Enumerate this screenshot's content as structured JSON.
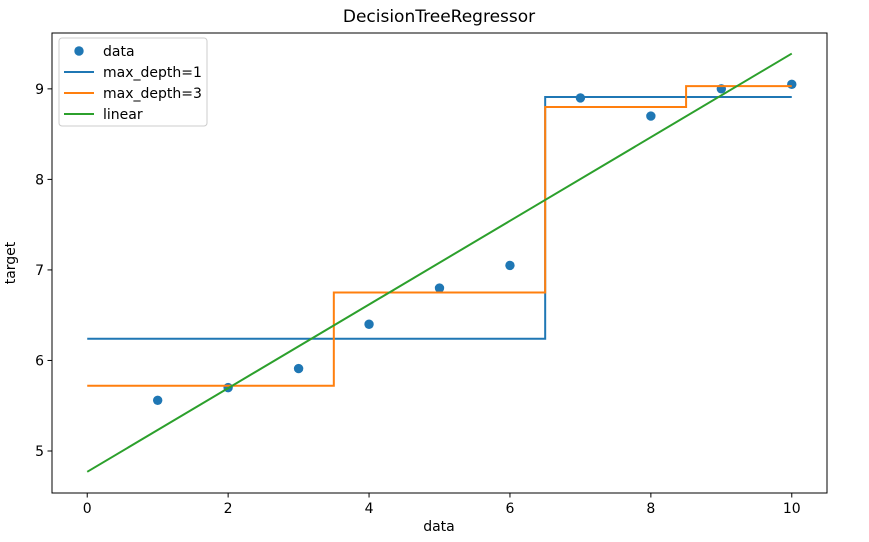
{
  "figure": {
    "title": "DecisionTreeRegressor",
    "xlabel": "data",
    "ylabel": "target",
    "background": "#ffffff"
  },
  "chart_data": {
    "type": "scatter",
    "title": "DecisionTreeRegressor",
    "xlabel": "data",
    "ylabel": "target",
    "xlim": [
      -0.5,
      10.5
    ],
    "ylim": [
      4.536,
      9.617
    ],
    "x_ticks": [
      0,
      2,
      4,
      6,
      8,
      10
    ],
    "y_ticks": [
      5,
      6,
      7,
      8,
      9
    ],
    "grid": false,
    "legend_position": "upper left",
    "scatter": {
      "name": "data",
      "color": "#1f77b4",
      "x": [
        1,
        2,
        3,
        4,
        5,
        6,
        7,
        8,
        9,
        10
      ],
      "y": [
        5.56,
        5.7,
        5.91,
        6.4,
        6.8,
        7.05,
        8.9,
        8.7,
        9.0,
        9.05
      ]
    },
    "series": [
      {
        "name": "max_depth=1",
        "type": "step",
        "color": "#1f77b4",
        "breakpoints": [
          0,
          6.5,
          10
        ],
        "values": [
          6.24,
          8.91
        ]
      },
      {
        "name": "max_depth=3",
        "type": "step",
        "color": "#ff7f0e",
        "breakpoints": [
          0,
          3.5,
          6.5,
          8.5,
          10
        ],
        "values": [
          5.72,
          6.75,
          8.8,
          9.03
        ]
      },
      {
        "name": "linear",
        "type": "line",
        "color": "#2ca02c",
        "x": [
          0,
          10
        ],
        "y": [
          4.77,
          9.39
        ]
      }
    ]
  }
}
